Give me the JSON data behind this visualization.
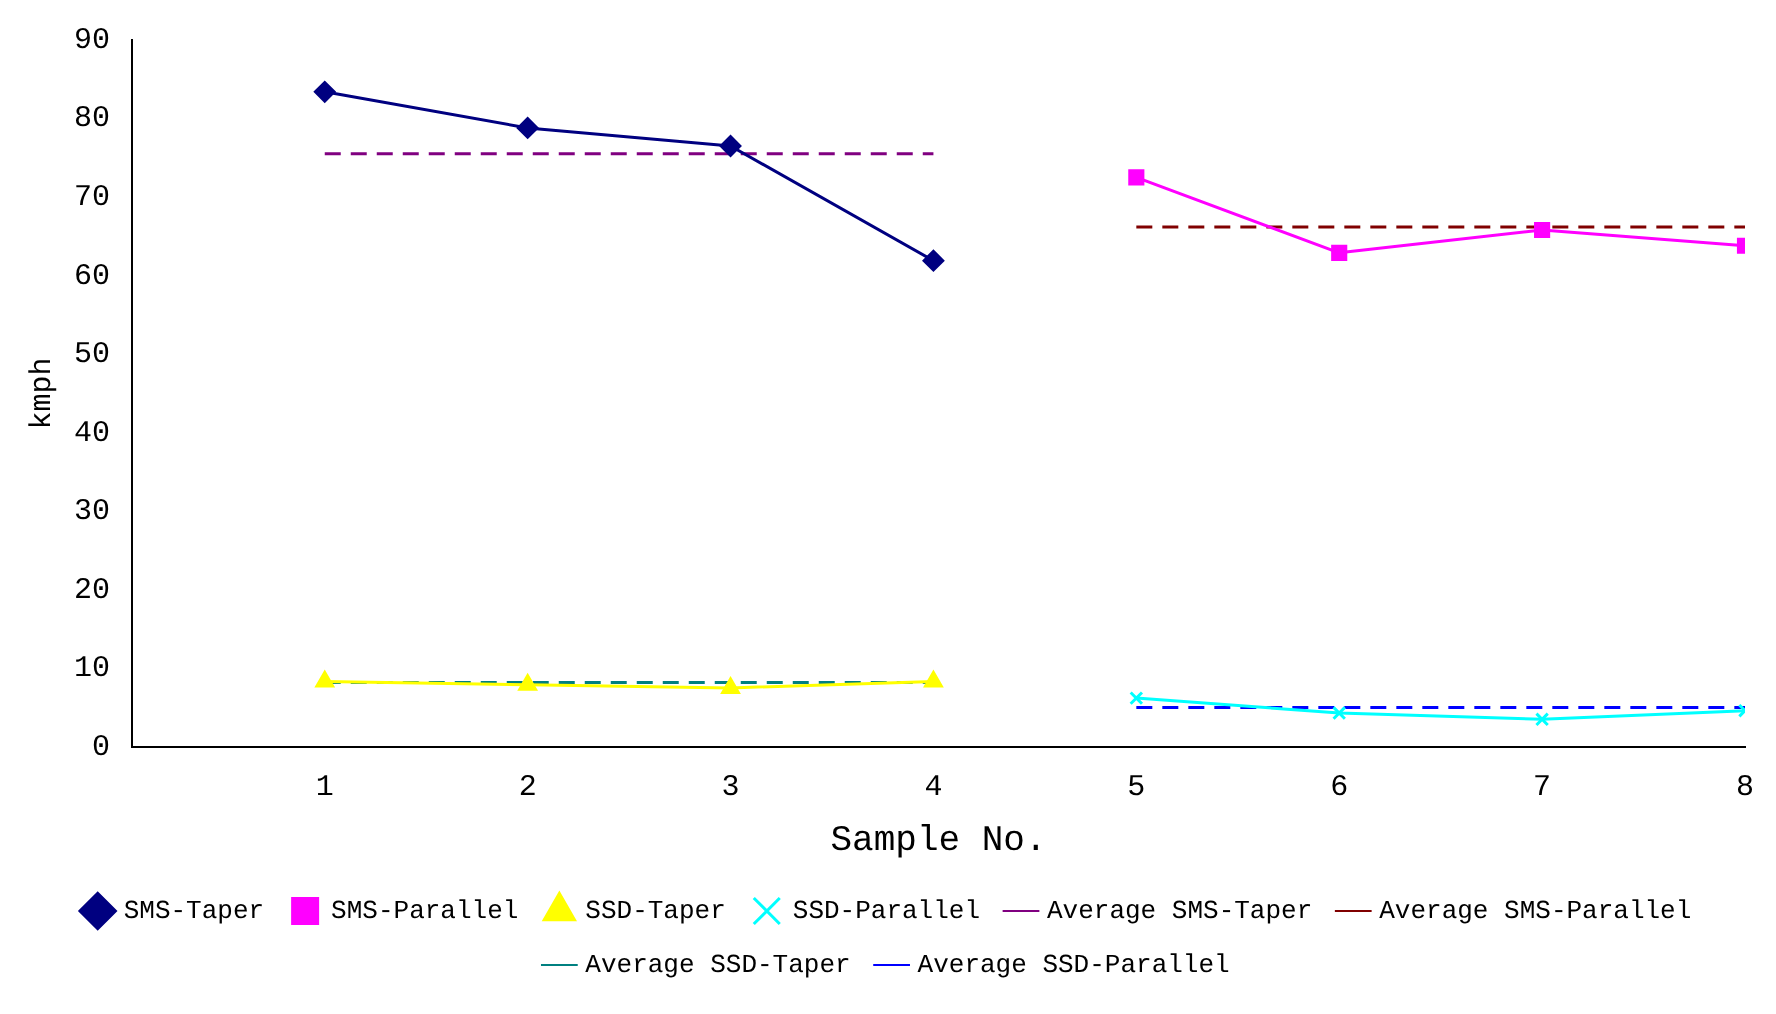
{
  "chart_data": {
    "type": "line",
    "xlabel": "Sample No.",
    "ylabel": "kmph",
    "xlim": [
      0.05,
      8
    ],
    "xticks": [
      1,
      2,
      3,
      4,
      5,
      6,
      7,
      8
    ],
    "ylim": [
      0,
      90
    ],
    "yticks": [
      0,
      10,
      20,
      30,
      40,
      50,
      60,
      70,
      80,
      90
    ],
    "grid": false,
    "legend": "bottom",
    "series": [
      {
        "name": "SMS-Taper",
        "color": "#000080",
        "marker": "diamond",
        "line_style": "solid",
        "x": [
          1,
          2,
          3,
          4
        ],
        "values": [
          83.4,
          78.8,
          76.5,
          61.9
        ]
      },
      {
        "name": "SMS-Parallel",
        "color": "#ff00ff",
        "marker": "square",
        "line_style": "solid",
        "x": [
          5,
          6,
          7,
          8
        ],
        "values": [
          72.5,
          62.9,
          65.8,
          63.8
        ]
      },
      {
        "name": "SSD-Taper",
        "color": "#ffff00",
        "marker": "triangle",
        "line_style": "solid",
        "x": [
          1,
          2,
          3,
          4
        ],
        "values": [
          8.3,
          7.9,
          7.5,
          8.3
        ]
      },
      {
        "name": "SSD-Parallel",
        "color": "#00ffff",
        "marker": "cross",
        "line_style": "solid",
        "x": [
          5,
          6,
          7,
          8
        ],
        "values": [
          6.2,
          4.3,
          3.5,
          4.6
        ]
      },
      {
        "name": "Average SMS-Taper",
        "color": "#800080",
        "marker": "none",
        "line_style": "dashed",
        "x": [
          1,
          4
        ],
        "values": [
          75.5,
          75.5
        ]
      },
      {
        "name": "Average SMS-Parallel",
        "color": "#800000",
        "marker": "none",
        "line_style": "dashed",
        "x": [
          5,
          8
        ],
        "values": [
          66.2,
          66.2
        ]
      },
      {
        "name": "Average SSD-Taper",
        "color": "#008080",
        "marker": "none",
        "line_style": "dashed",
        "x": [
          1,
          4
        ],
        "values": [
          8.2,
          8.2
        ]
      },
      {
        "name": "Average SSD-Parallel",
        "color": "#0000ff",
        "marker": "none",
        "line_style": "dashed",
        "x": [
          5,
          8
        ],
        "values": [
          5.0,
          5.0
        ]
      }
    ]
  }
}
